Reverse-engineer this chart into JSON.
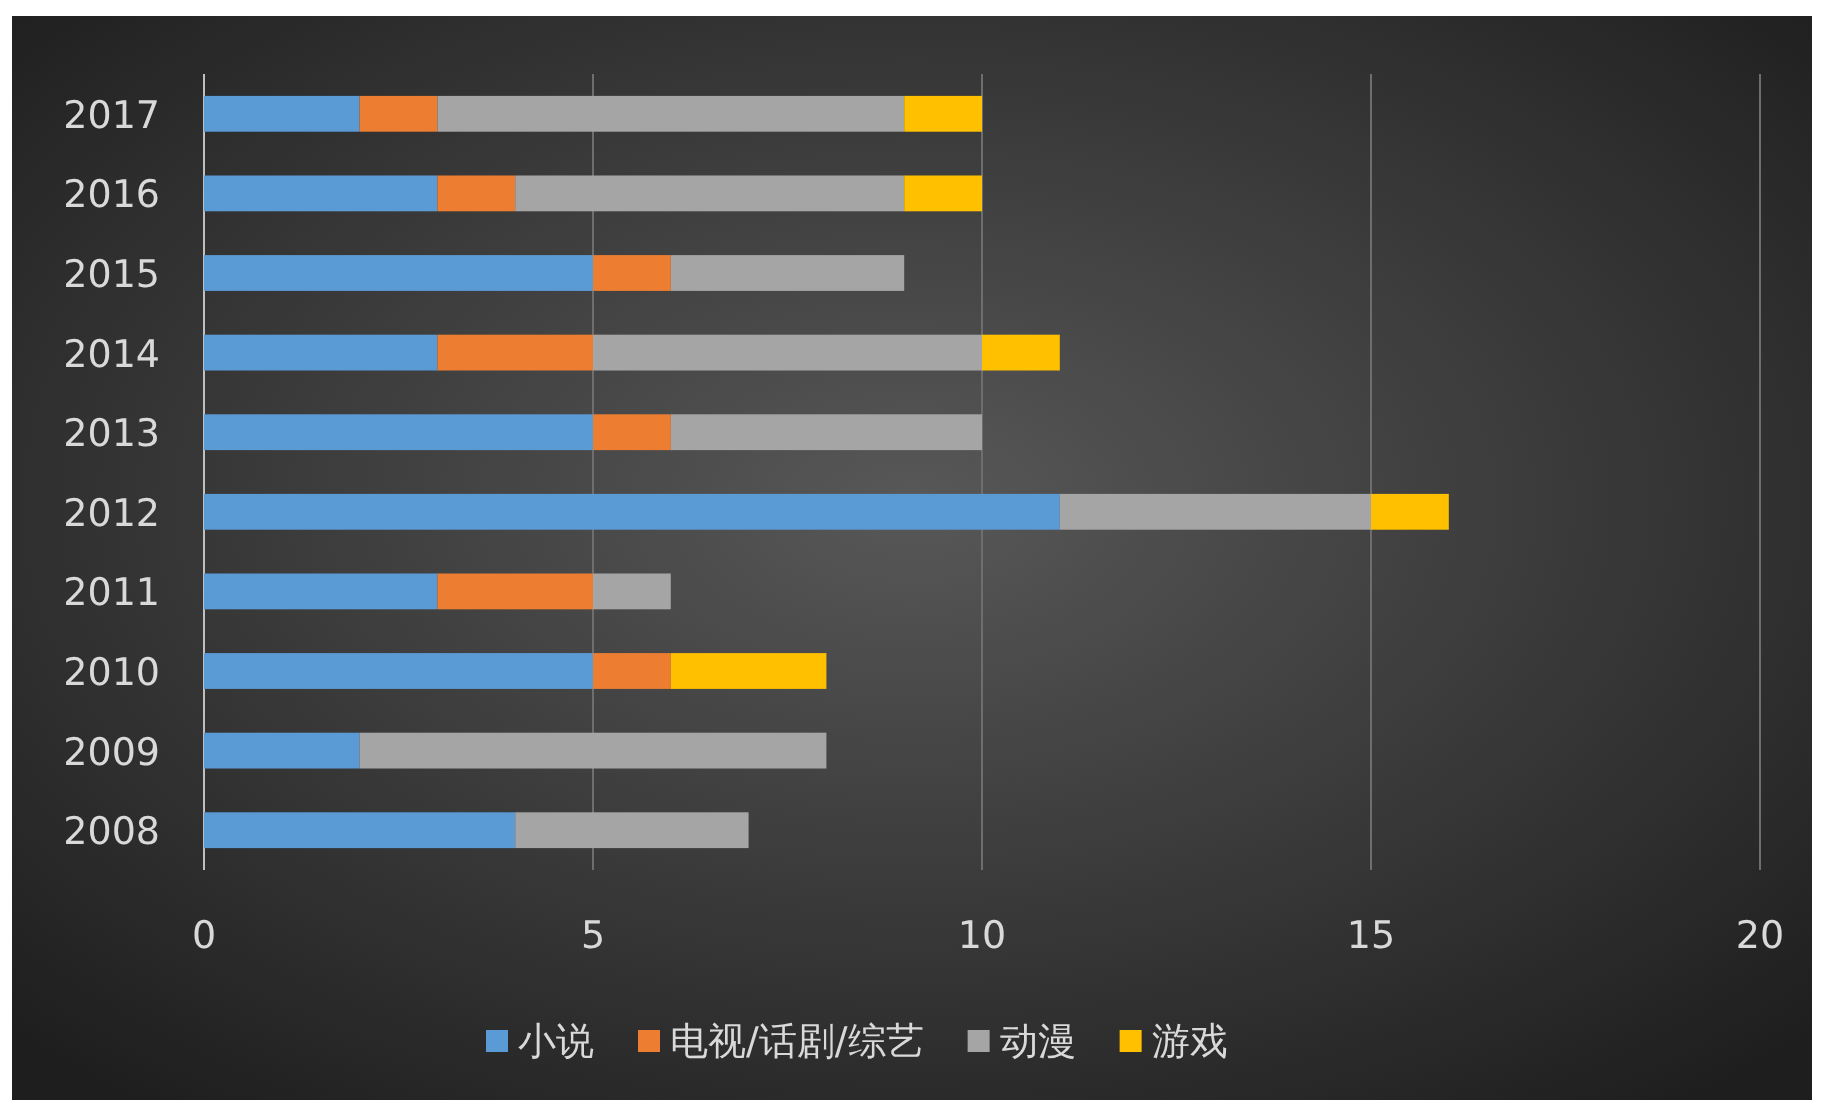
{
  "chart_data": {
    "type": "bar",
    "orientation": "horizontal",
    "stacked": true,
    "categories": [
      "2017",
      "2016",
      "2015",
      "2014",
      "2013",
      "2012",
      "2011",
      "2010",
      "2009",
      "2008"
    ],
    "series": [
      {
        "name": "小说",
        "color": "#5b9bd5",
        "values": [
          2,
          3,
          5,
          3,
          5,
          11,
          3,
          5,
          2,
          4
        ]
      },
      {
        "name": "电视/话剧/综艺",
        "color": "#ed7d31",
        "values": [
          1,
          1,
          1,
          2,
          1,
          0,
          2,
          1,
          0,
          0
        ]
      },
      {
        "name": "动漫",
        "color": "#a5a5a5",
        "values": [
          6,
          5,
          3,
          5,
          4,
          4,
          1,
          0,
          6,
          3
        ]
      },
      {
        "name": "游戏",
        "color": "#ffc000",
        "values": [
          1,
          1,
          0,
          1,
          0,
          1,
          0,
          2,
          0,
          0
        ]
      }
    ],
    "xlim": [
      0,
      20
    ],
    "xticks": [
      0,
      5,
      10,
      15,
      20
    ],
    "grid": "x",
    "legend": "bottom"
  }
}
